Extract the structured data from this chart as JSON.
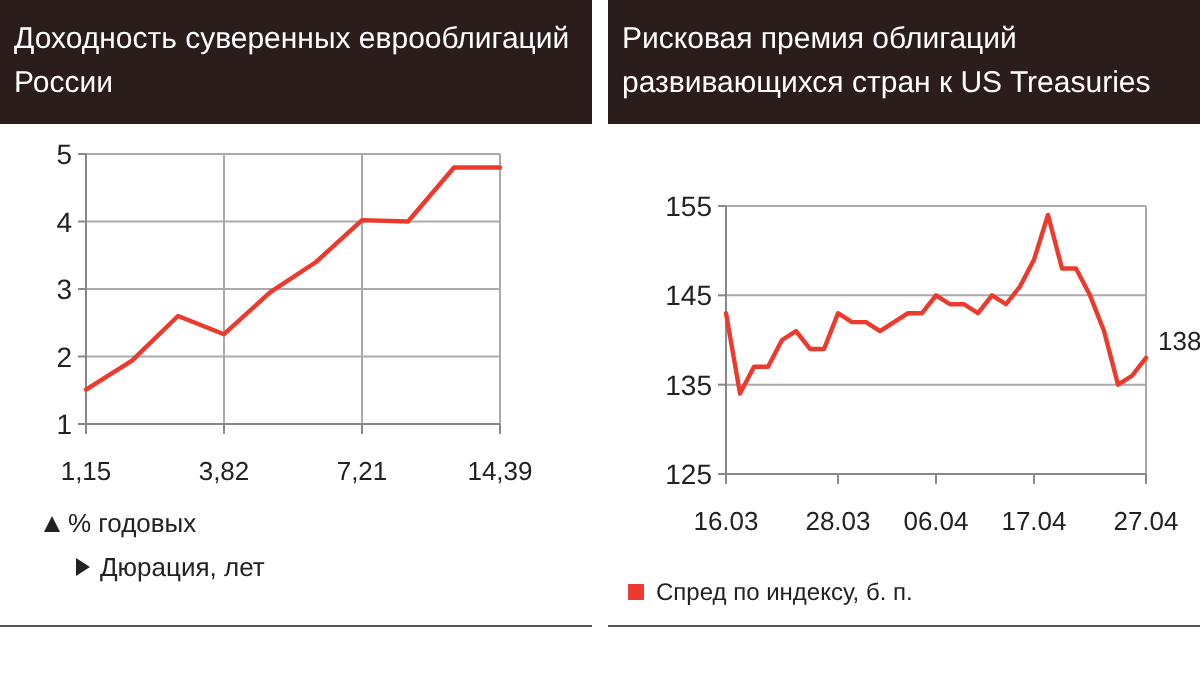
{
  "chart_data": [
    {
      "type": "line",
      "title": "Доходность суверенных еврооблигаций России",
      "annotations": [
        "% годовых",
        "Дюрация, лет"
      ],
      "categories": [
        "1,15",
        null,
        null,
        "3,82",
        null,
        null,
        "7,21",
        null,
        null,
        "14,39"
      ],
      "series": [
        {
          "color": "#ee3a2c",
          "values": [
            1.51,
            1.94,
            2.6,
            2.33,
            2.95,
            3.4,
            4.02,
            4.0,
            4.8,
            4.8
          ]
        }
      ],
      "ylim": [
        1,
        5
      ],
      "yticks": [
        1,
        2,
        3,
        4,
        5
      ],
      "grid": true
    },
    {
      "type": "line",
      "title": "Рисковая премия облигаций развивающихся стран к US Treasuries",
      "categories": [
        "16.03",
        null,
        null,
        null,
        null,
        null,
        null,
        null,
        "28.03",
        null,
        null,
        null,
        null,
        null,
        null,
        "06.04",
        null,
        null,
        null,
        null,
        null,
        null,
        "17.04",
        null,
        null,
        null,
        null,
        null,
        null,
        null,
        "27.04"
      ],
      "series": [
        {
          "name": "Спред по индексу, б. п.",
          "color": "#ee3a2c",
          "values": [
            143,
            134,
            137,
            137,
            140,
            141,
            139,
            139,
            143,
            142,
            142,
            141,
            142,
            143,
            143,
            145,
            144,
            144,
            143,
            145,
            144,
            146,
            149,
            154,
            148,
            148,
            145,
            141,
            135,
            136,
            138
          ]
        }
      ],
      "ylim": [
        125,
        155
      ],
      "yticks": [
        125,
        135,
        145,
        155
      ],
      "grid": "y",
      "legend": "bottom",
      "annotations": [
        {
          "text": "138",
          "x": "27.04",
          "y": 138
        }
      ]
    }
  ]
}
